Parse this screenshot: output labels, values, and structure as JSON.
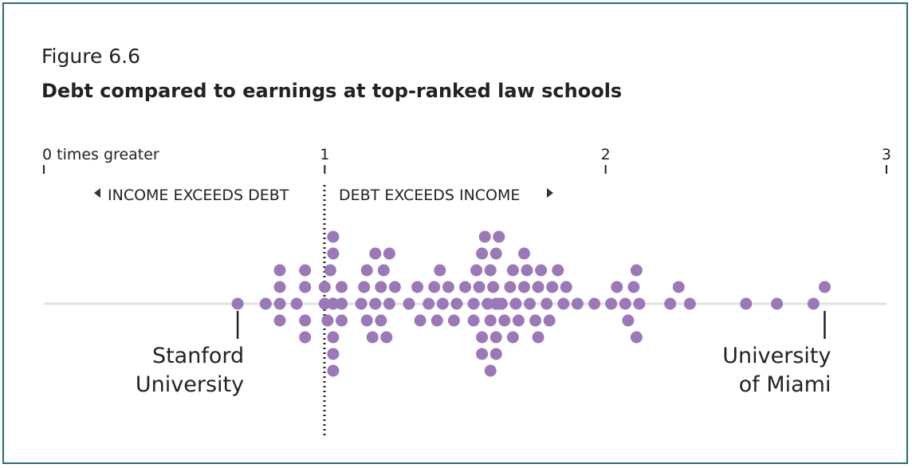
{
  "figure_label": "Figure 6.6",
  "title": "Debt compared to earnings at top-ranked law schools",
  "chart_data": {
    "type": "scatter",
    "subtype": "beeswarm",
    "title": "Debt compared to earnings at top-ranked law schools",
    "xlabel": "",
    "ylabel": "",
    "xlim": [
      0,
      3
    ],
    "x_ticks": [
      {
        "value": 0,
        "label": "0 times greater"
      },
      {
        "value": 1,
        "label": "1"
      },
      {
        "value": 2,
        "label": "2"
      },
      {
        "value": 3,
        "label": "3"
      }
    ],
    "reference_line": 1,
    "region_labels": {
      "left": "INCOME EXCEEDS DEBT",
      "right": "DEBT EXCEEDS INCOME"
    },
    "grid": false,
    "color": "#9b79b8",
    "annotations": [
      {
        "x": 0.69,
        "lines": [
          "Stanford",
          "University"
        ]
      },
      {
        "x": 2.78,
        "lines": [
          "University",
          "of Miami"
        ]
      }
    ],
    "values": [
      0.69,
      0.79,
      0.84,
      0.84,
      0.84,
      0.84,
      0.9,
      0.93,
      0.93,
      0.93,
      0.93,
      1.0,
      1.0,
      1.01,
      1.02,
      1.03,
      1.03,
      1.03,
      1.03,
      1.03,
      1.03,
      1.03,
      1.06,
      1.06,
      1.06,
      1.06,
      1.13,
      1.14,
      1.15,
      1.15,
      1.17,
      1.18,
      1.18,
      1.2,
      1.2,
      1.21,
      1.22,
      1.23,
      1.23,
      1.25,
      1.3,
      1.33,
      1.34,
      1.37,
      1.39,
      1.4,
      1.41,
      1.42,
      1.44,
      1.46,
      1.47,
      1.5,
      1.53,
      1.53,
      1.54,
      1.55,
      1.56,
      1.56,
      1.56,
      1.57,
      1.58,
      1.59,
      1.59,
      1.59,
      1.6,
      1.61,
      1.61,
      1.61,
      1.61,
      1.61,
      1.62,
      1.62,
      1.63,
      1.63,
      1.64,
      1.66,
      1.67,
      1.67,
      1.68,
      1.69,
      1.71,
      1.71,
      1.72,
      1.73,
      1.75,
      1.76,
      1.76,
      1.77,
      1.79,
      1.8,
      1.81,
      1.83,
      1.85,
      1.86,
      1.9,
      1.96,
      2.02,
      2.04,
      2.07,
      2.08,
      2.1,
      2.11,
      2.11,
      2.12,
      2.23,
      2.26,
      2.3,
      2.5,
      2.61,
      2.74,
      2.78
    ]
  }
}
